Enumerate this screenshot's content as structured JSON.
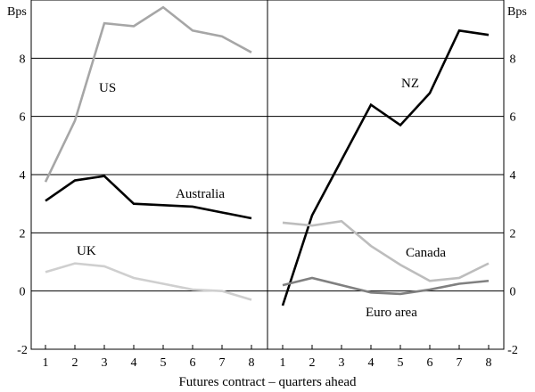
{
  "chart_data": [
    {
      "type": "line",
      "panel": "left",
      "x": [
        1,
        2,
        3,
        4,
        5,
        6,
        7,
        8
      ],
      "ylim": [
        -2,
        10
      ],
      "yticks": [
        -2,
        0,
        2,
        4,
        6,
        8
      ],
      "ylabel": "Bps",
      "grid": true,
      "series": [
        {
          "name": "US",
          "color": "#a6a6a6",
          "values": [
            3.75,
            5.85,
            9.2,
            9.1,
            9.75,
            8.95,
            8.75,
            8.2
          ]
        },
        {
          "name": "Australia",
          "color": "#000000",
          "values": [
            3.1,
            3.8,
            3.95,
            3.0,
            2.95,
            2.9,
            2.7,
            2.5
          ]
        },
        {
          "name": "UK",
          "color": "#cfcfcf",
          "values": [
            0.65,
            0.95,
            0.85,
            0.45,
            0.25,
            0.05,
            0.0,
            -0.3
          ]
        }
      ]
    },
    {
      "type": "line",
      "panel": "right",
      "x": [
        1,
        2,
        3,
        4,
        5,
        6,
        7,
        8
      ],
      "ylim": [
        -2,
        10
      ],
      "yticks": [
        -2,
        0,
        2,
        4,
        6,
        8
      ],
      "ylabel": "Bps",
      "grid": true,
      "series": [
        {
          "name": "NZ",
          "color": "#000000",
          "values": [
            -0.5,
            2.6,
            4.5,
            6.4,
            5.7,
            6.8,
            8.95,
            8.8
          ]
        },
        {
          "name": "Canada",
          "color": "#bdbdbd",
          "values": [
            2.35,
            2.25,
            2.4,
            1.55,
            0.9,
            0.35,
            0.45,
            0.95
          ]
        },
        {
          "name": "Euro area",
          "color": "#808080",
          "values": [
            0.2,
            0.45,
            0.2,
            -0.05,
            -0.1,
            0.05,
            0.25,
            0.35
          ]
        }
      ]
    }
  ],
  "xlabel": "Futures contract – quarters ahead",
  "unit_label": "Bps"
}
